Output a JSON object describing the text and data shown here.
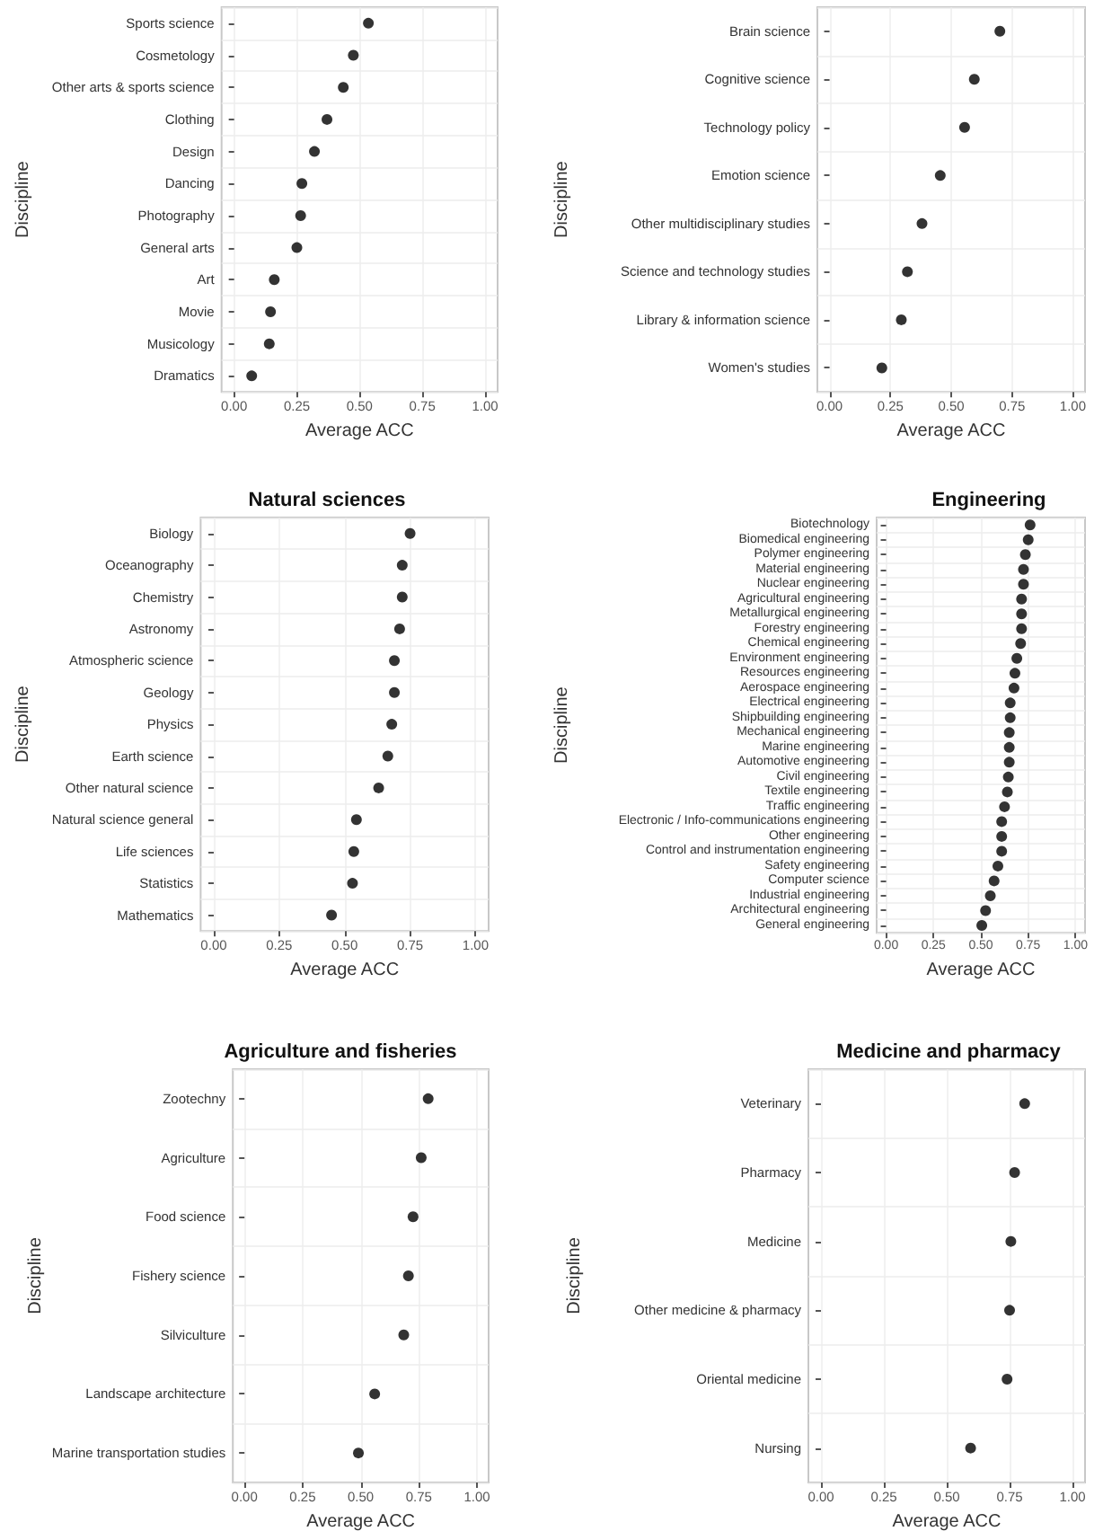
{
  "chart_data": [
    {
      "type": "scatter",
      "orientation": "horizontal",
      "xlabel": "Average ACC",
      "ylabel": "Discipline",
      "categories": [
        "Sports science",
        "Cosmetology",
        "Other arts & sports science",
        "Clothing",
        "Design",
        "Dancing",
        "Photography",
        "General arts",
        "Art",
        "Movie",
        "Musicology",
        "Dramatics"
      ],
      "values": [
        0.535,
        0.475,
        0.435,
        0.37,
        0.32,
        0.27,
        0.265,
        0.25,
        0.16,
        0.145,
        0.14,
        0.07
      ],
      "color": "#000000",
      "xlim": [
        -0.05,
        1.05
      ],
      "xticks": [
        {
          "value": 0,
          "label": "0.00"
        },
        {
          "value": 0.25,
          "label": "0.25"
        },
        {
          "value": 0.5,
          "label": "0.50"
        },
        {
          "value": 0.75,
          "label": "0.75"
        },
        {
          "value": 1,
          "label": "1.00"
        }
      ],
      "grid": true,
      "marker": "circle"
    },
    {
      "type": "scatter",
      "orientation": "horizontal",
      "xlabel": "Average ACC",
      "ylabel": "Discipline",
      "categories": [
        "Brain science",
        "Cognitive science",
        "Technology policy",
        "Emotion science",
        "Other multidisciplinary studies",
        "Science and technology studies",
        "Library & information science",
        "Women's studies"
      ],
      "values": [
        0.7,
        0.595,
        0.555,
        0.455,
        0.38,
        0.32,
        0.295,
        0.215
      ],
      "color": "#000000",
      "xlim": [
        -0.05,
        1.05
      ],
      "xticks": [
        {
          "value": 0,
          "label": "0.00"
        },
        {
          "value": 0.25,
          "label": "0.25"
        },
        {
          "value": 0.5,
          "label": "0.50"
        },
        {
          "value": 0.75,
          "label": "0.75"
        },
        {
          "value": 1,
          "label": "1.00"
        }
      ],
      "grid": true,
      "marker": "circle"
    },
    {
      "type": "scatter",
      "orientation": "horizontal",
      "title": "Natural sciences",
      "xlabel": "Average ACC",
      "ylabel": "Discipline",
      "categories": [
        "Biology",
        "Oceanography",
        "Chemistry",
        "Astronomy",
        "Atmospheric science",
        "Geology",
        "Physics",
        "Earth science",
        "Other natural science",
        "Natural science general",
        "Life sciences",
        "Statistics",
        "Mathematics"
      ],
      "values": [
        0.75,
        0.72,
        0.72,
        0.71,
        0.69,
        0.69,
        0.68,
        0.665,
        0.63,
        0.545,
        0.535,
        0.53,
        0.45
      ],
      "color": "#000000",
      "xlim": [
        -0.05,
        1.05
      ],
      "xticks": [
        {
          "value": 0,
          "label": "0.00"
        },
        {
          "value": 0.25,
          "label": "0.25"
        },
        {
          "value": 0.5,
          "label": "0.50"
        },
        {
          "value": 0.75,
          "label": "0.75"
        },
        {
          "value": 1,
          "label": "1.00"
        }
      ],
      "grid": true,
      "marker": "circle"
    },
    {
      "type": "scatter",
      "orientation": "horizontal",
      "title": "Engineering",
      "xlabel": "Average ACC",
      "ylabel": "Discipline",
      "categories": [
        "Biotechnology",
        "Biomedical engineering",
        "Polymer engineering",
        "Material engineering",
        "Nuclear engineering",
        "Agricultural engineering",
        "Metallurgical engineering",
        "Forestry engineering",
        "Chemical engineering",
        "Environment engineering",
        "Resources engineering",
        "Aerospace engineering",
        "Electrical engineering",
        "Shipbuilding engineering",
        "Mechanical engineering",
        "Marine engineering",
        "Automotive engineering",
        "Civil engineering",
        "Textile engineering",
        "Traffic engineering",
        "Electronic / Info-communications engineering",
        "Other engineering",
        "Control and instrumentation engineering",
        "Safety engineering",
        "Computer science",
        "Industrial engineering",
        "Architectural engineering",
        "General engineering"
      ],
      "values": [
        0.76,
        0.75,
        0.735,
        0.725,
        0.725,
        0.715,
        0.715,
        0.715,
        0.71,
        0.69,
        0.68,
        0.675,
        0.655,
        0.655,
        0.65,
        0.65,
        0.65,
        0.645,
        0.64,
        0.625,
        0.61,
        0.61,
        0.61,
        0.59,
        0.57,
        0.55,
        0.525,
        0.505
      ],
      "color": "#000000",
      "xlim": [
        -0.05,
        1.05
      ],
      "xticks": [
        {
          "value": 0,
          "label": "0.00"
        },
        {
          "value": 0.25,
          "label": "0.25"
        },
        {
          "value": 0.5,
          "label": "0.50"
        },
        {
          "value": 0.75,
          "label": "0.75"
        },
        {
          "value": 1,
          "label": "1.00"
        }
      ],
      "grid": true,
      "marker": "circle"
    },
    {
      "type": "scatter",
      "orientation": "horizontal",
      "title": "Agriculture and fisheries",
      "xlabel": "Average ACC",
      "ylabel": "Discipline",
      "categories": [
        "Zootechny",
        "Agriculture",
        "Food science",
        "Fishery science",
        "Silviculture",
        "Landscape architecture",
        "Marine transportation studies"
      ],
      "values": [
        0.79,
        0.76,
        0.725,
        0.705,
        0.685,
        0.56,
        0.49
      ],
      "color": "#000000",
      "xlim": [
        -0.05,
        1.05
      ],
      "xticks": [
        {
          "value": 0,
          "label": "0.00"
        },
        {
          "value": 0.25,
          "label": "0.25"
        },
        {
          "value": 0.5,
          "label": "0.50"
        },
        {
          "value": 0.75,
          "label": "0.75"
        },
        {
          "value": 1,
          "label": "1.00"
        }
      ],
      "grid": true,
      "marker": "circle"
    },
    {
      "type": "scatter",
      "orientation": "horizontal",
      "title": "Medicine and pharmacy",
      "xlabel": "Average ACC",
      "ylabel": "Discipline",
      "categories": [
        "Veterinary",
        "Pharmacy",
        "Medicine",
        "Other medicine & pharmacy",
        "Oriental medicine",
        "Nursing"
      ],
      "values": [
        0.81,
        0.77,
        0.755,
        0.75,
        0.74,
        0.595
      ],
      "color": "#000000",
      "xlim": [
        -0.05,
        1.05
      ],
      "xticks": [
        {
          "value": 0,
          "label": "0.00"
        },
        {
          "value": 0.25,
          "label": "0.25"
        },
        {
          "value": 0.5,
          "label": "0.50"
        },
        {
          "value": 0.75,
          "label": "0.75"
        },
        {
          "value": 1,
          "label": "1.00"
        }
      ],
      "grid": true,
      "marker": "circle"
    }
  ]
}
